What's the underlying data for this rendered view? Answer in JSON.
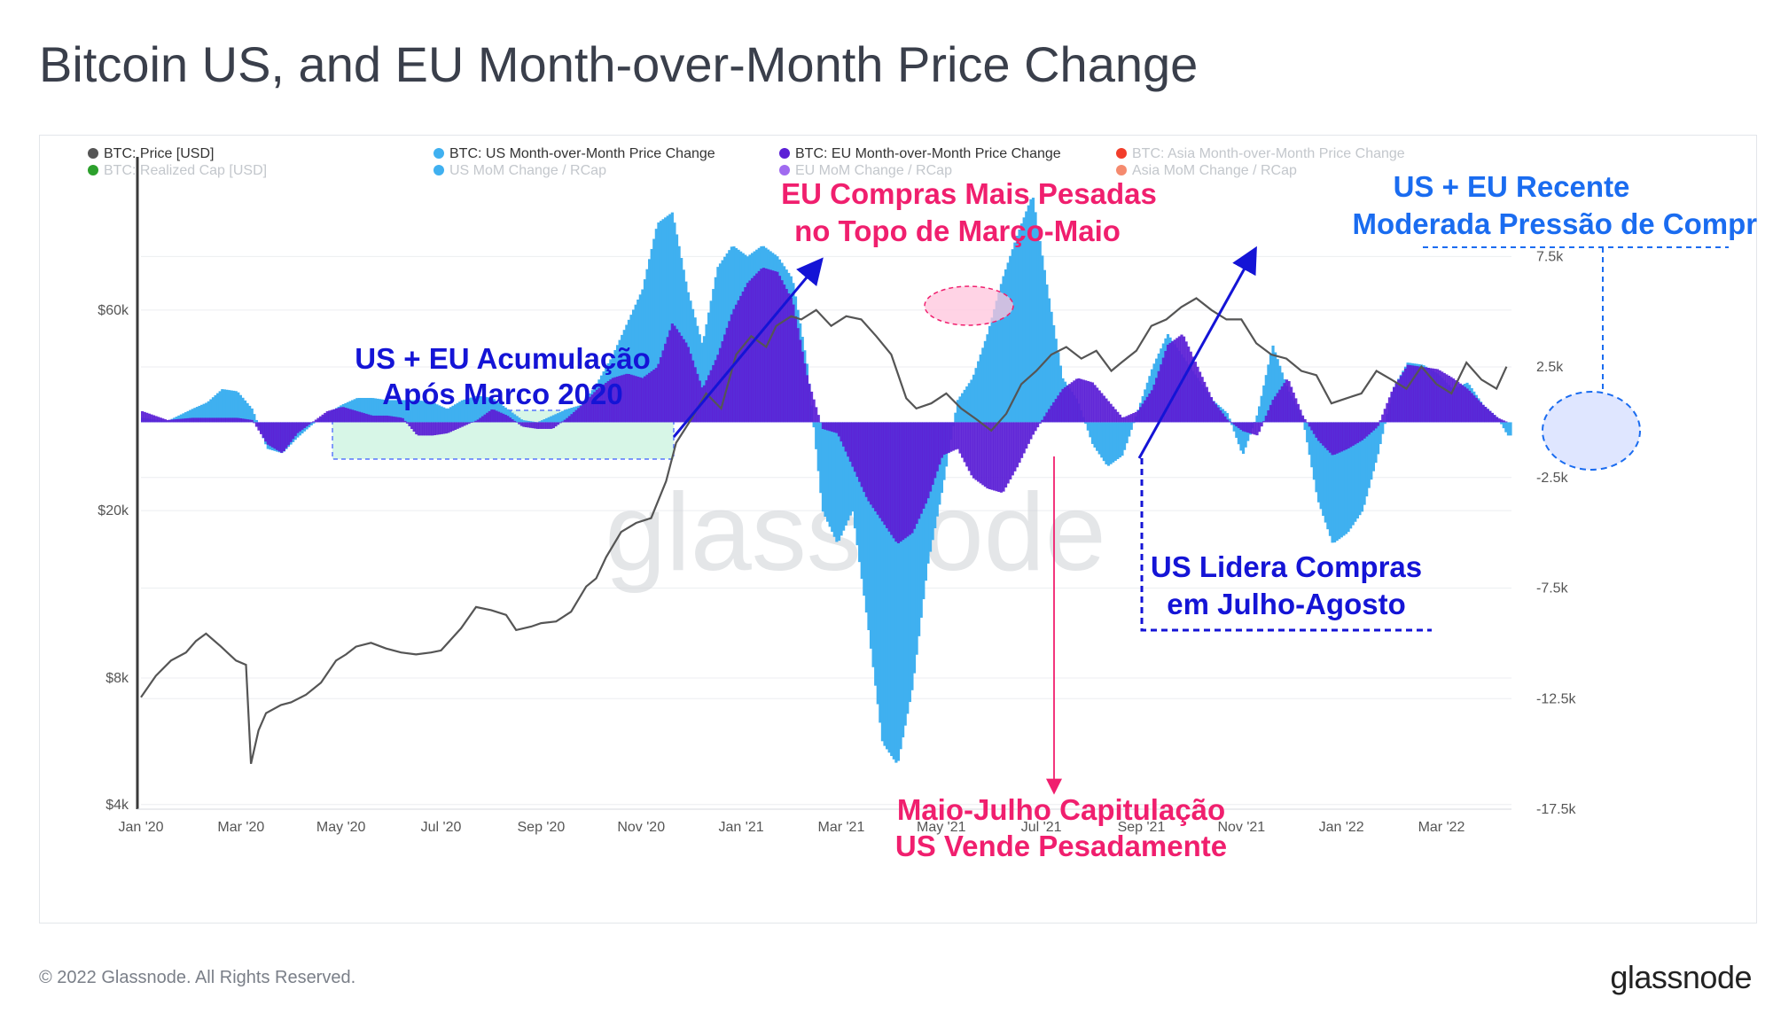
{
  "title": "Bitcoin US, and EU Month-over-Month Price Change",
  "footer": {
    "copyright": "© 2022 Glassnode. All Rights Reserved.",
    "brand": "glassnode"
  },
  "watermark": "glassnode",
  "colors": {
    "price": "#555555",
    "us": "#3fb0f0",
    "eu": "#5b1fd6",
    "asia": "#f23d2b",
    "realized_cap": "#2ca02c",
    "eu_rcap": "#a06bf0",
    "asia_rcap": "#f58a6e",
    "annotation_blue": "#1414d6",
    "annotation_pink": "#f01f6e",
    "annotation_lightblue": "#1a6cf0"
  },
  "chart_data": {
    "type": "bar+line",
    "legend": [
      {
        "label": "BTC: Price [USD]",
        "color": "#555555",
        "active": true
      },
      {
        "label": "BTC: US Month-over-Month Price Change",
        "color": "#3fb0f0",
        "active": true
      },
      {
        "label": "BTC: EU Month-over-Month Price Change",
        "color": "#5b1fd6",
        "active": true
      },
      {
        "label": "BTC: Asia Month-over-Month Price Change",
        "color": "#f23d2b",
        "active": false
      },
      {
        "label": "BTC: Realized Cap [USD]",
        "color": "#2ca02c",
        "active": false
      },
      {
        "label": "US MoM Change / RCap",
        "color": "#3fb0f0",
        "active": false
      },
      {
        "label": "EU MoM Change / RCap",
        "color": "#a06bf0",
        "active": false
      },
      {
        "label": "Asia MoM Change / RCap",
        "color": "#f58a6e",
        "active": false
      }
    ],
    "x_ticks": [
      "Jan '20",
      "Mar '20",
      "May '20",
      "Jul '20",
      "Sep '20",
      "Nov '20",
      "Jan '21",
      "Mar '21",
      "May '21",
      "Jul '21",
      "Sep '21",
      "Nov '21",
      "Jan '22",
      "Mar '22"
    ],
    "x_range_months": [
      0,
      27.4
    ],
    "y_left": {
      "scale": "log",
      "ticks": [
        "$4k",
        "$8k",
        "$20k",
        "$60k"
      ],
      "tick_values": [
        4000,
        8000,
        20000,
        60000
      ],
      "range": [
        3900,
        120000
      ]
    },
    "y_right": {
      "ticks": [
        "7.5k",
        "2.5k",
        "-2.5k",
        "-7.5k",
        "-12.5k",
        "-17.5k"
      ],
      "tick_values": [
        7500,
        2500,
        -2500,
        -7500,
        -12500,
        -17500
      ],
      "range": [
        -17500,
        10800
      ]
    },
    "price_series": {
      "t": [
        0,
        0.3,
        0.6,
        0.9,
        1.1,
        1.3,
        1.6,
        1.9,
        2.1,
        2.2,
        2.35,
        2.5,
        2.8,
        3.0,
        3.3,
        3.6,
        3.9,
        4.1,
        4.3,
        4.6,
        4.9,
        5.2,
        5.5,
        5.8,
        6.0,
        6.4,
        6.7,
        7.0,
        7.3,
        7.5,
        7.8,
        8.0,
        8.3,
        8.6,
        8.9,
        9.1,
        9.3,
        9.6,
        9.9,
        10.2,
        10.5,
        10.7,
        11.0,
        11.3,
        11.6,
        11.9,
        12.2,
        12.5,
        12.7,
        13.0,
        13.2,
        13.5,
        13.8,
        14.1,
        14.4,
        14.7,
        15.0,
        15.3,
        15.5,
        15.8,
        16.1,
        16.4,
        16.7,
        17.0,
        17.3,
        17.6,
        17.9,
        18.2,
        18.5,
        18.8,
        19.1,
        19.4,
        19.6,
        19.9,
        20.2,
        20.5,
        20.8,
        21.1,
        21.4,
        21.7,
        22.0,
        22.3,
        22.6,
        22.9,
        23.2,
        23.5,
        23.8,
        24.1,
        24.4,
        24.7,
        25.0,
        25.3,
        25.6,
        25.9,
        26.2,
        26.5,
        26.8,
        27.1,
        27.3
      ],
      "usd": [
        7200,
        8100,
        8800,
        9200,
        9800,
        10200,
        9500,
        8800,
        8600,
        5000,
        6000,
        6600,
        6900,
        7000,
        7300,
        7800,
        8800,
        9100,
        9500,
        9700,
        9400,
        9200,
        9100,
        9200,
        9300,
        10500,
        11800,
        11600,
        11300,
        10400,
        10600,
        10800,
        10900,
        11500,
        13200,
        13800,
        15500,
        17800,
        18700,
        19200,
        23500,
        29000,
        33000,
        38000,
        35000,
        47000,
        52000,
        49000,
        55000,
        58000,
        57000,
        60000,
        55000,
        58000,
        57000,
        52000,
        47000,
        37000,
        35000,
        36000,
        38000,
        35000,
        33000,
        31000,
        34000,
        40000,
        43000,
        47000,
        49000,
        46000,
        48000,
        43000,
        45000,
        48000,
        55000,
        57000,
        61000,
        64000,
        60000,
        57000,
        57000,
        50000,
        47000,
        46000,
        43000,
        42000,
        36000,
        37000,
        38000,
        43000,
        41000,
        39000,
        44000,
        40000,
        38000,
        45000,
        41000,
        39000,
        44000
      ],
      "y_label_note": "price line on log left axis"
    },
    "us_mom": {
      "t": [
        0,
        0.5,
        1.0,
        1.3,
        1.6,
        1.9,
        2.2,
        2.5,
        2.8,
        3.1,
        3.4,
        3.7,
        4.0,
        4.3,
        4.6,
        4.9,
        5.2,
        5.5,
        5.8,
        6.1,
        6.4,
        6.7,
        7.0,
        7.3,
        7.6,
        7.9,
        8.2,
        8.5,
        8.8,
        9.1,
        9.4,
        9.7,
        10.0,
        10.3,
        10.6,
        10.9,
        11.2,
        11.5,
        11.8,
        12.1,
        12.4,
        12.7,
        13.0,
        13.3,
        13.6,
        13.9,
        14.2,
        14.5,
        14.8,
        15.1,
        15.4,
        15.7,
        16.0,
        16.3,
        16.6,
        16.9,
        17.2,
        17.5,
        17.8,
        18.1,
        18.4,
        18.7,
        19.0,
        19.3,
        19.6,
        19.9,
        20.2,
        20.5,
        20.8,
        21.1,
        21.4,
        21.7,
        22.0,
        22.3,
        22.6,
        22.9,
        23.2,
        23.5,
        23.8,
        24.1,
        24.4,
        24.7,
        25.0,
        25.3,
        25.6,
        25.9,
        26.2,
        26.5,
        26.8,
        27.1,
        27.3
      ],
      "value": [
        200,
        50,
        600,
        900,
        1500,
        1400,
        600,
        -1200,
        -1400,
        -700,
        -100,
        400,
        800,
        1100,
        1100,
        1000,
        1000,
        1000,
        900,
        600,
        1000,
        1200,
        1100,
        600,
        100,
        0,
        300,
        600,
        800,
        1800,
        3000,
        4500,
        6000,
        9000,
        9500,
        6000,
        3500,
        7000,
        8000,
        7500,
        8000,
        7500,
        6500,
        2500,
        -4000,
        -5500,
        -4000,
        -9000,
        -14500,
        -15500,
        -12000,
        -6500,
        -3000,
        1000,
        2000,
        4000,
        6500,
        8500,
        10300,
        6000,
        2000,
        1000,
        -1000,
        -2000,
        -1500,
        500,
        2500,
        4000,
        3000,
        2000,
        1000,
        400,
        -1500,
        400,
        3500,
        1500,
        200,
        -3500,
        -5500,
        -5000,
        -4000,
        -1500,
        1500,
        2700,
        2600,
        2200,
        1500,
        1800,
        800,
        200,
        -600
      ]
    },
    "eu_mom": {
      "t": [
        0,
        0.5,
        1.0,
        1.3,
        1.6,
        1.9,
        2.2,
        2.5,
        2.8,
        3.1,
        3.4,
        3.7,
        4.0,
        4.3,
        4.6,
        4.9,
        5.2,
        5.5,
        5.8,
        6.1,
        6.4,
        6.7,
        7.0,
        7.3,
        7.6,
        7.9,
        8.2,
        8.5,
        8.8,
        9.1,
        9.4,
        9.7,
        10.0,
        10.3,
        10.6,
        10.9,
        11.2,
        11.5,
        11.8,
        12.1,
        12.4,
        12.7,
        13.0,
        13.3,
        13.6,
        13.9,
        14.2,
        14.5,
        14.8,
        15.1,
        15.4,
        15.7,
        16.0,
        16.3,
        16.6,
        16.9,
        17.2,
        17.5,
        17.8,
        18.1,
        18.4,
        18.7,
        19.0,
        19.3,
        19.6,
        19.9,
        20.2,
        20.5,
        20.8,
        21.1,
        21.4,
        21.7,
        22.0,
        22.3,
        22.6,
        22.9,
        23.2,
        23.5,
        23.8,
        24.1,
        24.4,
        24.7,
        25.0,
        25.3,
        25.6,
        25.9,
        26.2,
        26.5,
        26.8,
        27.1,
        27.3
      ],
      "value": [
        500,
        100,
        200,
        200,
        200,
        200,
        100,
        -1000,
        -1400,
        -500,
        0,
        500,
        700,
        500,
        300,
        300,
        200,
        -600,
        -600,
        -500,
        -200,
        100,
        600,
        300,
        -200,
        -300,
        -300,
        200,
        800,
        1500,
        2000,
        2200,
        2000,
        2500,
        4500,
        3500,
        1500,
        3000,
        5000,
        6300,
        7000,
        6800,
        5500,
        2000,
        -300,
        -500,
        -2000,
        -3500,
        -4500,
        -5500,
        -5000,
        -3500,
        -1500,
        -1200,
        -2500,
        -3000,
        -3200,
        -2000,
        -600,
        500,
        1500,
        2000,
        1800,
        1000,
        200,
        500,
        1500,
        3500,
        4000,
        2500,
        1000,
        100,
        -400,
        -600,
        1000,
        2000,
        300,
        -800,
        -1500,
        -1200,
        -800,
        -200,
        1500,
        2600,
        2500,
        2400,
        2000,
        1500,
        800,
        200,
        0
      ]
    }
  },
  "annotations": {
    "accum_line1": "US + EU Acumulação",
    "accum_line2": "Após Marco 2020",
    "eu_top_line1": "EU Compras Mais Pesadas",
    "eu_top_line2": "no Topo de  Março-Maio",
    "recent_line1": "US + EU Recente",
    "recent_line2": "Moderada Pressão de Compra",
    "us_leads_line1": "US Lidera Compras",
    "us_leads_line2": "em Julho-Agosto",
    "capitulation_line1": "Maio-Julho Capitulação",
    "capitulation_line2": "US Vende Pesadamente"
  }
}
